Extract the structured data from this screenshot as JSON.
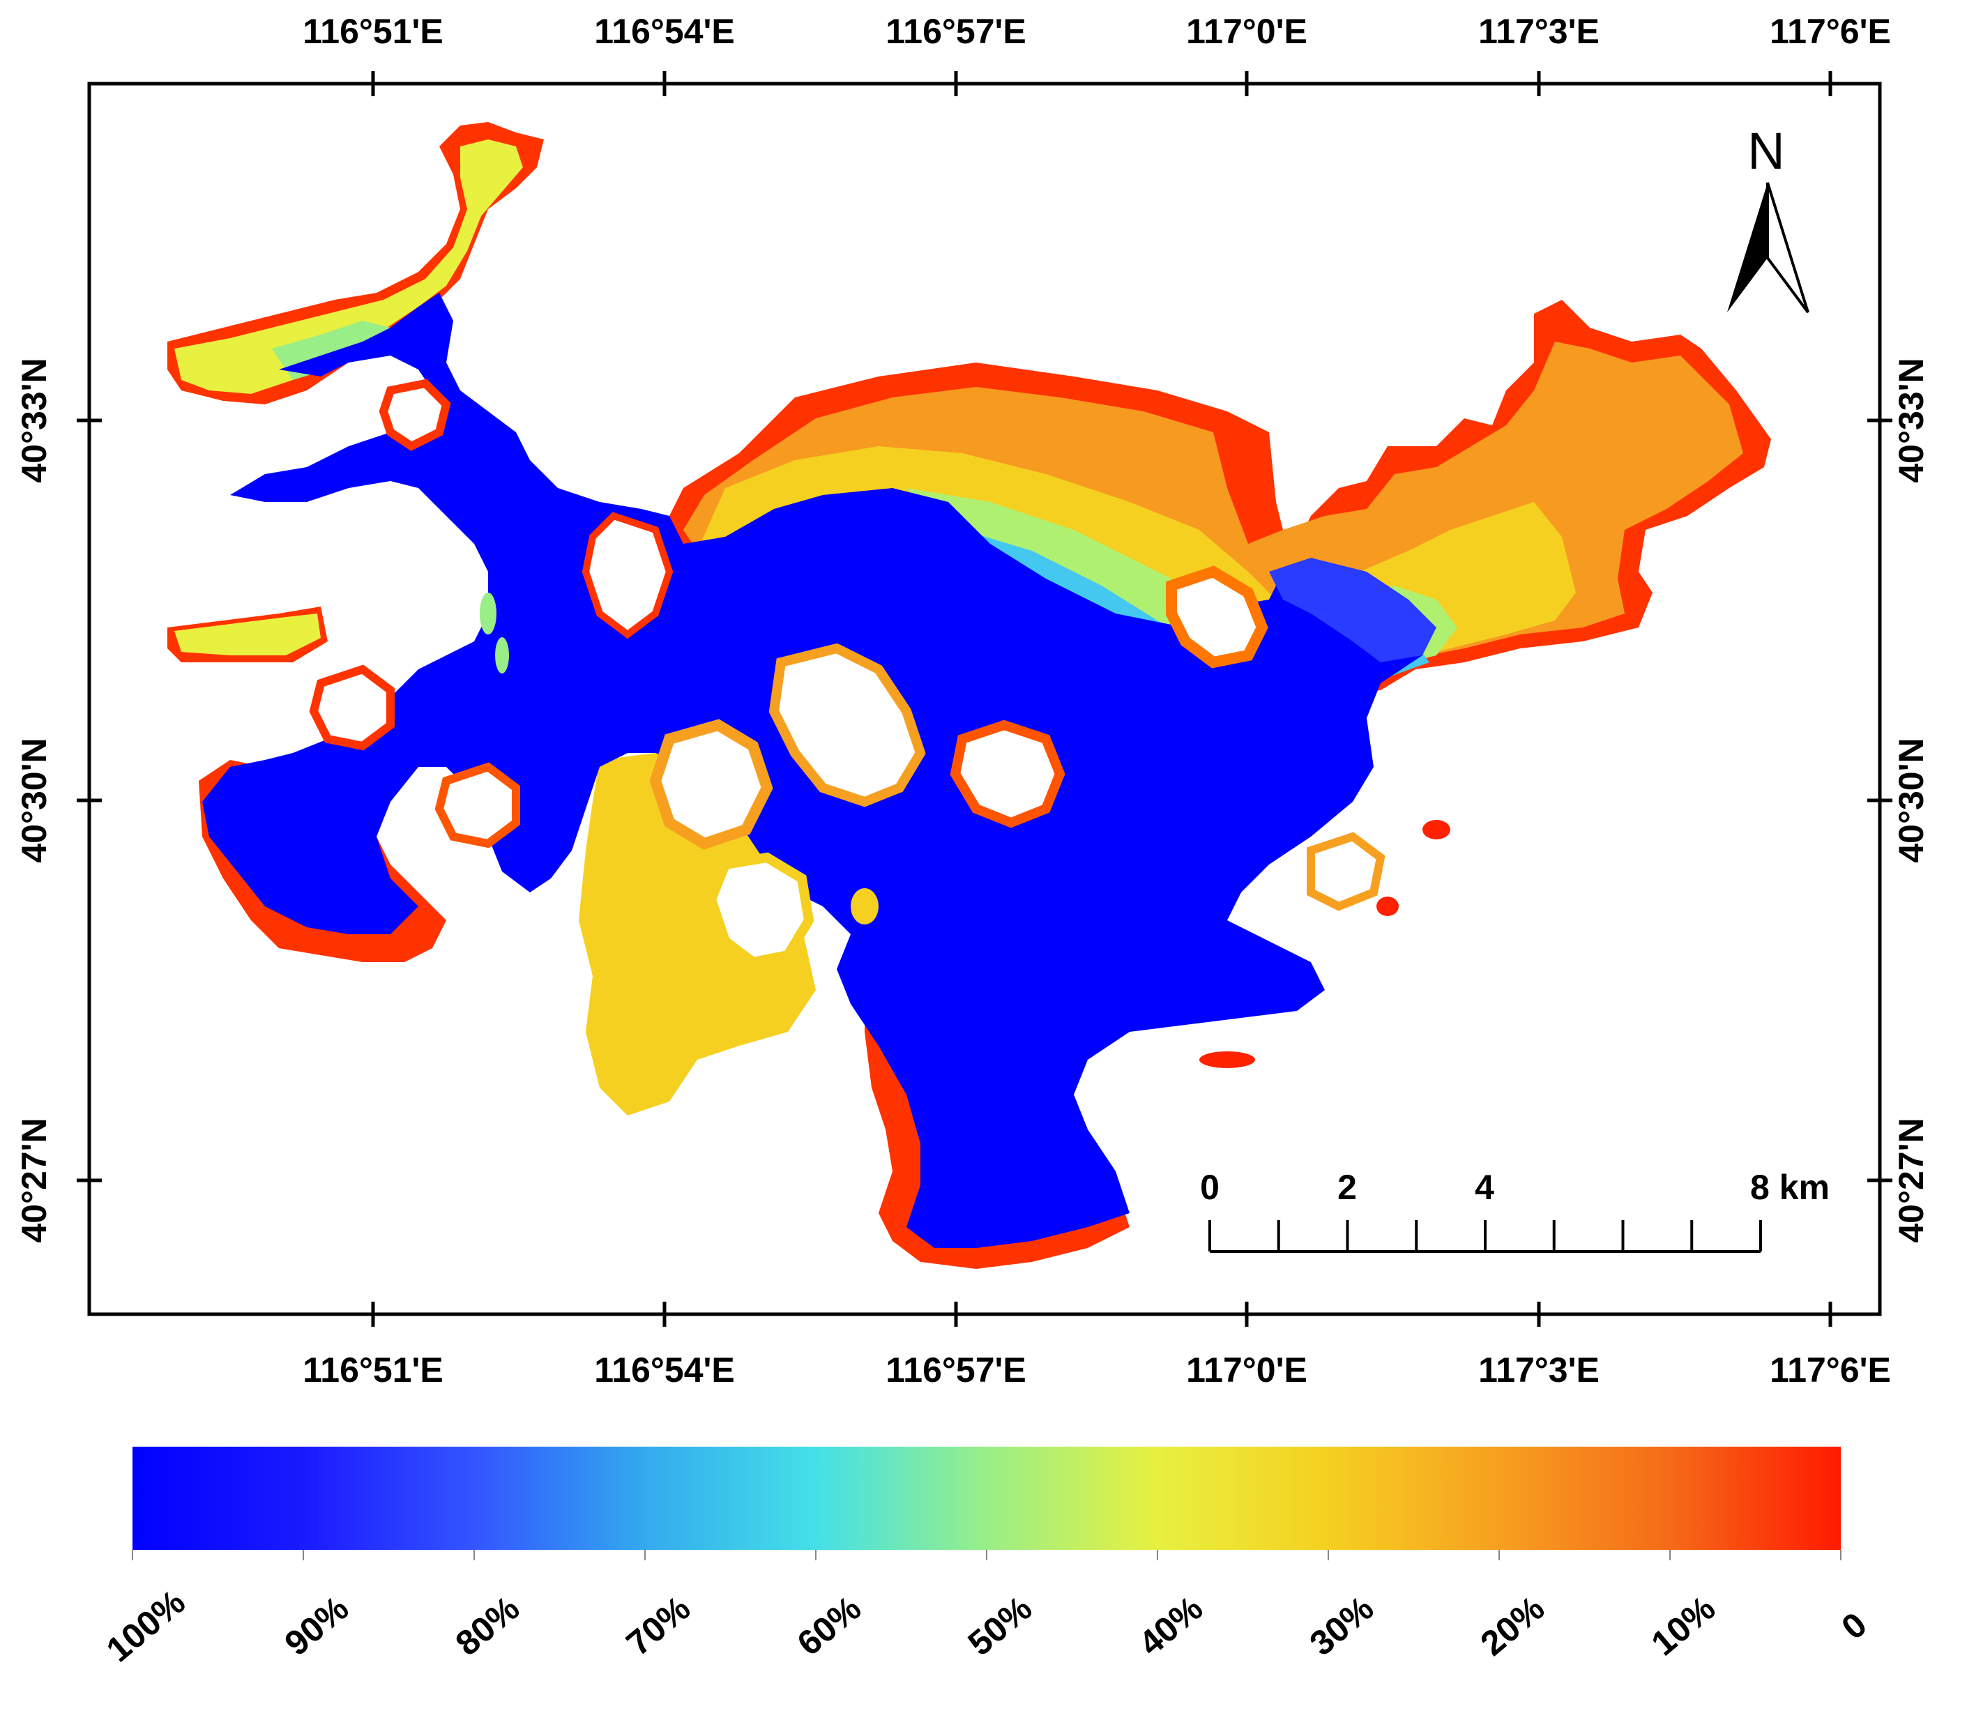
{
  "map": {
    "axes": {
      "longitude_labels": [
        "116°51'E",
        "116°54'E",
        "116°57'E",
        "117°0'E",
        "117°3'E",
        "117°6'E"
      ],
      "latitude_labels": [
        "40°33'N",
        "40°30'N",
        "40°27'N"
      ]
    },
    "north_arrow": {
      "label": "N",
      "icon": "north-arrow-icon"
    },
    "scale_bar": {
      "labels": [
        "0",
        "2",
        "4",
        "8 km"
      ]
    },
    "legend": {
      "colors": [
        "#0000ff",
        "#1a1aff",
        "#3355ff",
        "#33aaee",
        "#44e0e8",
        "#99ee88",
        "#e8f040",
        "#f5d020",
        "#f7a020",
        "#f56a18",
        "#ff1a00"
      ],
      "labels": [
        "100%",
        "90%",
        "80%",
        "70%",
        "60%",
        "50%",
        "40%",
        "30%",
        "20%",
        "10%",
        "0"
      ]
    },
    "colors": {
      "deep": "#0000ff",
      "blue2": "#2a3cff",
      "cyan": "#44d8e0",
      "green": "#9cf07a",
      "yellow": "#e8f040",
      "gold": "#f5cc20",
      "orange": "#f79a20",
      "red": "#ff2200"
    }
  }
}
